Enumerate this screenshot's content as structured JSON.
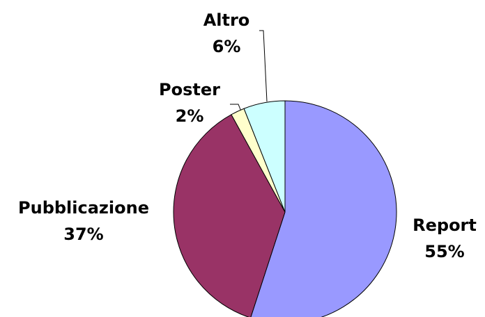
{
  "chart_data": {
    "type": "pie",
    "categories": [
      "Report",
      "Pubblicazione",
      "Poster",
      "Altro"
    ],
    "values": [
      55,
      37,
      2,
      6
    ],
    "value_labels": [
      "55%",
      "37%",
      "2%",
      "6%"
    ],
    "colors": [
      "#9999ff",
      "#993366",
      "#ffffcc",
      "#ccffff"
    ]
  }
}
